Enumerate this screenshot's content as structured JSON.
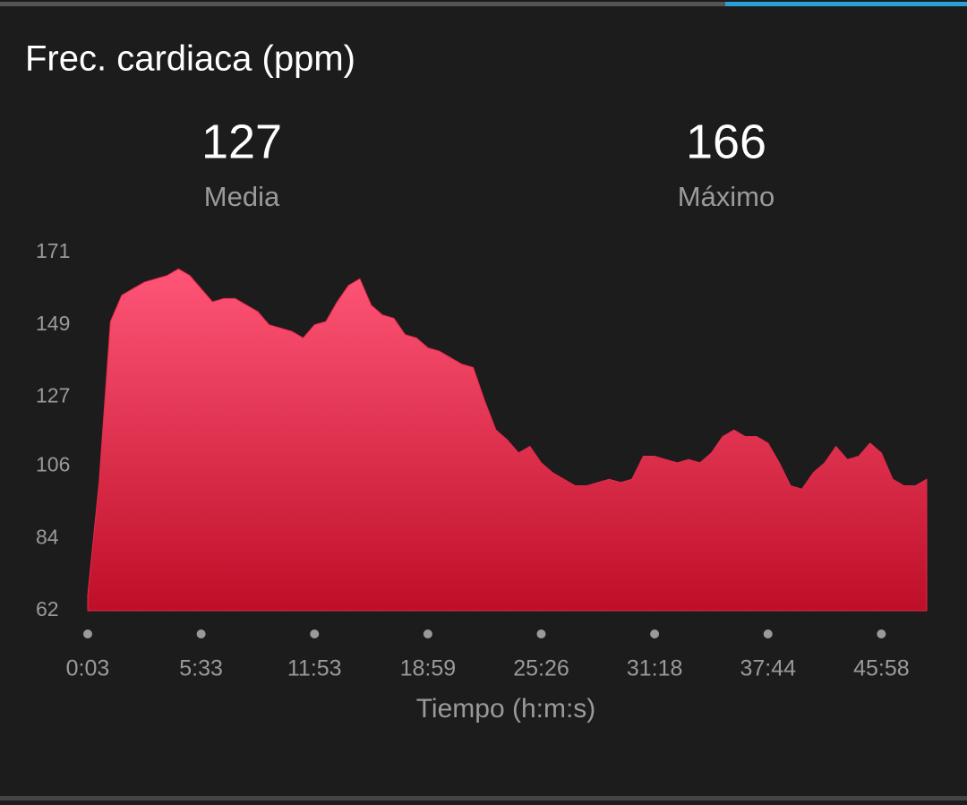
{
  "title": "Frec. cardiaca (ppm)",
  "stats": [
    {
      "value": 127,
      "label": "Media"
    },
    {
      "value": 166,
      "label": "Máximo"
    }
  ],
  "chart_data": {
    "type": "area",
    "values": [
      66.7,
      101,
      150,
      158,
      160,
      162,
      163,
      164,
      166,
      164,
      160,
      156,
      157,
      157,
      155,
      153,
      149,
      148,
      147,
      145,
      149,
      150,
      156,
      161,
      163,
      155,
      152,
      151,
      146,
      145,
      142,
      141,
      139,
      137,
      136,
      126,
      117,
      114,
      110,
      112,
      107,
      104,
      102,
      100,
      100,
      101,
      102,
      101,
      102,
      109,
      109,
      108,
      107,
      108,
      107,
      110,
      115,
      117,
      115,
      115,
      113,
      107,
      100,
      99,
      104,
      107,
      112,
      108,
      109,
      113,
      110,
      102,
      100,
      100,
      102
    ],
    "color": "#e8294b",
    "ylim": [
      62,
      171
    ],
    "yticks": [
      62,
      84,
      106,
      127,
      149,
      171
    ],
    "xlim": [
      0,
      74
    ],
    "xticks": [
      {
        "value": 0,
        "label": "0:03"
      },
      {
        "value": 10,
        "label": "5:33"
      },
      {
        "value": 20,
        "label": "11:53"
      },
      {
        "value": 30,
        "label": "18:59"
      },
      {
        "value": 40,
        "label": "25:26"
      },
      {
        "value": 50,
        "label": "31:18"
      },
      {
        "value": 60,
        "label": "37:44"
      },
      {
        "value": 70,
        "label": "45:58"
      }
    ],
    "xlabel": "Tiempo (h:m:s)"
  }
}
